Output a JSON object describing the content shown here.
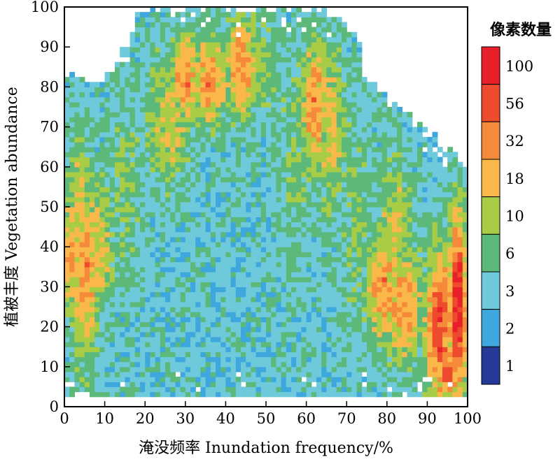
{
  "chart_data": {
    "type": "heatmap",
    "title": "",
    "xlabel": "淹没频率 Inundation frequency/%",
    "ylabel": "植被丰度 Vegetation abundance",
    "xlim": [
      0,
      100
    ],
    "ylim": [
      0,
      100
    ],
    "x_ticks": [
      "0",
      "10",
      "20",
      "30",
      "40",
      "50",
      "60",
      "70",
      "80",
      "90",
      "100"
    ],
    "y_ticks": [
      "0",
      "10",
      "20",
      "30",
      "40",
      "50",
      "60",
      "70",
      "80",
      "90",
      "100"
    ],
    "grid": false,
    "legend": {
      "title": "像素数量",
      "placement": "right",
      "levels": [
        {
          "label": "100",
          "color": "#e8202a"
        },
        {
          "label": "56",
          "color": "#ee4a2d"
        },
        {
          "label": "32",
          "color": "#f58a3a"
        },
        {
          "label": "18",
          "color": "#fbb84a"
        },
        {
          "label": "10",
          "color": "#a8cc46"
        },
        {
          "label": "6",
          "color": "#5cb97a"
        },
        {
          "label": "3",
          "color": "#6ecadb"
        },
        {
          "label": "2",
          "color": "#3ea8de"
        },
        {
          "label": "1",
          "color": "#243a96"
        }
      ]
    },
    "upper_envelope": [
      [
        0,
        82
      ],
      [
        2,
        84
      ],
      [
        5,
        82
      ],
      [
        10,
        82
      ],
      [
        13,
        85
      ],
      [
        16,
        92
      ],
      [
        18,
        99
      ],
      [
        20,
        100
      ],
      [
        60,
        100
      ],
      [
        70,
        97
      ],
      [
        73,
        90
      ],
      [
        76,
        82
      ],
      [
        80,
        77
      ],
      [
        84,
        74
      ],
      [
        88,
        72
      ],
      [
        91,
        69
      ],
      [
        94,
        66
      ],
      [
        97,
        63
      ],
      [
        99,
        60
      ],
      [
        100,
        58
      ]
    ],
    "lower_envelope": [
      [
        0,
        3
      ],
      [
        100,
        3
      ]
    ],
    "hotspots": [
      {
        "x": 1.5,
        "y": 38,
        "sx": 1.8,
        "sy": 10,
        "level": 3
      },
      {
        "x": 5.5,
        "y": 33,
        "sx": 2.5,
        "sy": 16,
        "level": 3
      },
      {
        "x": 3.5,
        "y": 50,
        "sx": 2.5,
        "sy": 14,
        "level": 2
      },
      {
        "x": 9,
        "y": 40,
        "sx": 2.5,
        "sy": 12,
        "level": 2
      },
      {
        "x": 15,
        "y": 55,
        "sx": 3.5,
        "sy": 20,
        "level": 1
      },
      {
        "x": 30,
        "y": 82,
        "sx": 2.5,
        "sy": 8,
        "level": 3
      },
      {
        "x": 36,
        "y": 82,
        "sx": 3,
        "sy": 8,
        "level": 3
      },
      {
        "x": 44,
        "y": 85,
        "sx": 3,
        "sy": 9,
        "level": 3
      },
      {
        "x": 26,
        "y": 72,
        "sx": 4,
        "sy": 12,
        "level": 2
      },
      {
        "x": 50,
        "y": 85,
        "sx": 3,
        "sy": 10,
        "level": 1
      },
      {
        "x": 62,
        "y": 75,
        "sx": 2.5,
        "sy": 12,
        "level": 3
      },
      {
        "x": 66,
        "y": 70,
        "sx": 3,
        "sy": 15,
        "level": 2
      },
      {
        "x": 57,
        "y": 60,
        "sx": 3,
        "sy": 20,
        "level": 1
      },
      {
        "x": 72,
        "y": 45,
        "sx": 3,
        "sy": 20,
        "level": 1
      },
      {
        "x": 79,
        "y": 30,
        "sx": 3,
        "sy": 10,
        "level": 3
      },
      {
        "x": 84,
        "y": 25,
        "sx": 3.5,
        "sy": 10,
        "level": 3
      },
      {
        "x": 82,
        "y": 45,
        "sx": 3,
        "sy": 12,
        "level": 2
      },
      {
        "x": 93,
        "y": 20,
        "sx": 2.5,
        "sy": 14,
        "level": 4
      },
      {
        "x": 97.5,
        "y": 25,
        "sx": 1.8,
        "sy": 16,
        "level": 5
      },
      {
        "x": 95,
        "y": 8,
        "sx": 2,
        "sy": 4,
        "level": 4
      }
    ]
  }
}
